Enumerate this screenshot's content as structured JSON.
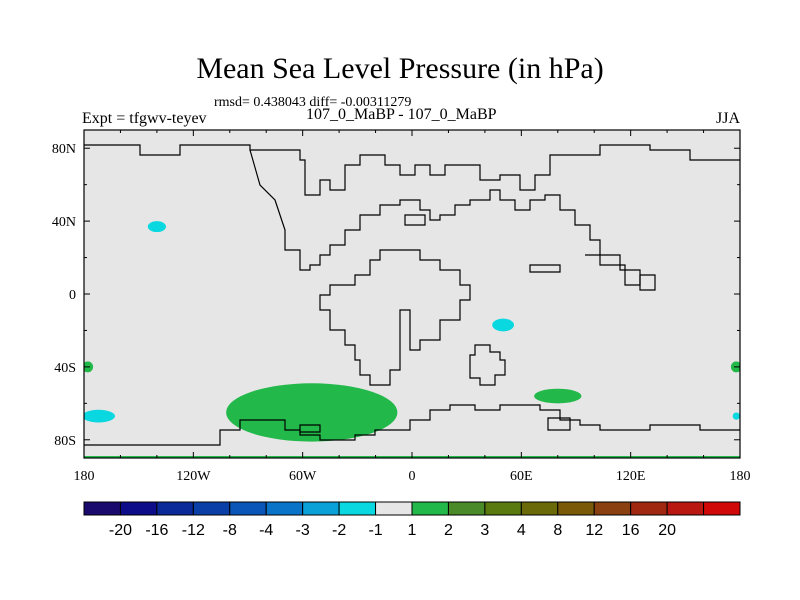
{
  "chart_data": {
    "type": "heatmap",
    "title": "Mean Sea Level Pressure (in hPa)",
    "stats_text": "rmsd= 0.438043  diff= -0.00311279",
    "left_label": "Expt = tfgwv-teyev",
    "center_label": "107_0_MaBP - 107_0_MaBP",
    "right_label": "JJA",
    "x_ticks": [
      {
        "lon": -180,
        "label": "180"
      },
      {
        "lon": -120,
        "label": "120W"
      },
      {
        "lon": -60,
        "label": "60W"
      },
      {
        "lon": 0,
        "label": "0"
      },
      {
        "lon": 60,
        "label": "60E"
      },
      {
        "lon": 120,
        "label": "120E"
      },
      {
        "lon": 180,
        "label": "180"
      }
    ],
    "y_ticks": [
      {
        "lat": 80,
        "label": "80N"
      },
      {
        "lat": 40,
        "label": "40N"
      },
      {
        "lat": 0,
        "label": "0"
      },
      {
        "lat": -40,
        "label": "40S"
      },
      {
        "lat": -80,
        "label": "80S"
      }
    ],
    "xlim": [
      -180,
      180
    ],
    "ylim": [
      -90,
      90
    ],
    "background_color": "#e6e6e6",
    "colorbar": {
      "colors": [
        "#1a0a6e",
        "#0d0d8a",
        "#0a2a9a",
        "#0a3fa8",
        "#0a55b8",
        "#0a75c8",
        "#0aa0d8",
        "#0ad8e0",
        "#e6e6e6",
        "#22b84a",
        "#4a8a28",
        "#5a7a10",
        "#6a6a08",
        "#7a5a08",
        "#8a4010",
        "#a02810",
        "#b81810",
        "#d00808"
      ],
      "labels": [
        "-20",
        "-16",
        "-12",
        "-8",
        "-4",
        "-3",
        "-2",
        "-1",
        "1",
        "2",
        "3",
        "4",
        "8",
        "12",
        "16",
        "20"
      ]
    },
    "anomalies": [
      {
        "lon": -140,
        "lat": 37,
        "value": -2,
        "color": "#0ad8e0",
        "rlon": 5,
        "rlat": 3
      },
      {
        "lon": -172,
        "lat": -67,
        "value": -2,
        "color": "#0ad8e0",
        "rlon": 9,
        "rlat": 3.5
      },
      {
        "lon": -178,
        "lat": -40,
        "value": 1.5,
        "color": "#22b84a",
        "rlon": 3,
        "rlat": 3
      },
      {
        "lon": 50,
        "lat": -17,
        "value": -2,
        "color": "#0ad8e0",
        "rlon": 6,
        "rlat": 3.5
      },
      {
        "lon": 80,
        "lat": -56,
        "value": 1.5,
        "color": "#22b84a",
        "rlon": 13,
        "rlat": 4
      },
      {
        "lon": 178,
        "lat": -40,
        "value": 1.5,
        "color": "#22b84a",
        "rlon": 3,
        "rlat": 3
      },
      {
        "lon": 178,
        "lat": -67,
        "value": -2,
        "color": "#0ad8e0",
        "rlon": 2,
        "rlat": 2
      },
      {
        "lon": -55,
        "lat": -65,
        "value": 1.5,
        "color": "#22b84a",
        "rlon": 47,
        "rlat": 16
      }
    ]
  }
}
